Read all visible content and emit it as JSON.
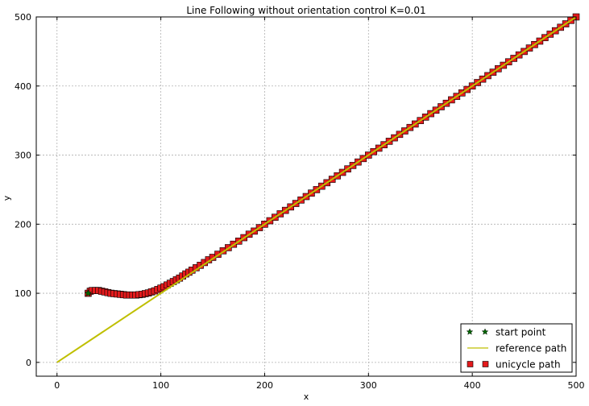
{
  "chart_data": {
    "type": "line",
    "title": "Line Following without orientation control K=0.01",
    "xlabel": "x",
    "ylabel": "y",
    "xlim": [
      -20,
      500
    ],
    "ylim": [
      -20,
      500
    ],
    "xticks": [
      0,
      100,
      200,
      300,
      400,
      500
    ],
    "yticks": [
      0,
      100,
      200,
      300,
      400,
      500
    ],
    "grid": true,
    "legend_position": "lower-right",
    "series": [
      {
        "name": "start point",
        "kind": "marker",
        "marker": "star",
        "color": "#006400",
        "points": [
          [
            30,
            100
          ]
        ]
      },
      {
        "name": "reference path",
        "kind": "line",
        "color": "#bfbf00",
        "points": [
          [
            0,
            0
          ],
          [
            500,
            500
          ]
        ]
      },
      {
        "name": "unicycle path",
        "kind": "marker",
        "marker": "square",
        "color": "#e31a1c",
        "points": [
          [
            30,
            100
          ],
          [
            32,
            103
          ],
          [
            34,
            104
          ],
          [
            37,
            104
          ],
          [
            40,
            104
          ],
          [
            43,
            103
          ],
          [
            46,
            102
          ],
          [
            49,
            101
          ],
          [
            52,
            100
          ],
          [
            55,
            99.5
          ],
          [
            58,
            99
          ],
          [
            61,
            98.5
          ],
          [
            64,
            98
          ],
          [
            67,
            97.5
          ],
          [
            70,
            97.5
          ],
          [
            73,
            97.5
          ],
          [
            76,
            97.5
          ],
          [
            79,
            98
          ],
          [
            82,
            98.5
          ],
          [
            85,
            99.5
          ],
          [
            88,
            100.5
          ],
          [
            91,
            102
          ],
          [
            94,
            103.5
          ],
          [
            97,
            105.5
          ],
          [
            100,
            107.5
          ],
          [
            103,
            109.5
          ],
          [
            106,
            112
          ],
          [
            109,
            114.5
          ],
          [
            112,
            117
          ],
          [
            115,
            119.5
          ],
          [
            118,
            122
          ],
          [
            121,
            125
          ],
          [
            124,
            128
          ],
          [
            127,
            130.5
          ],
          [
            130,
            133.5
          ],
          [
            134,
            137
          ],
          [
            138,
            140.5
          ],
          [
            142,
            144.5
          ],
          [
            146,
            148.5
          ],
          [
            150,
            152
          ],
          [
            155,
            156.5
          ],
          [
            160,
            161.5
          ],
          [
            165,
            166
          ],
          [
            170,
            171
          ],
          [
            175,
            175.5
          ],
          [
            180,
            180.5
          ],
          [
            185,
            185.5
          ],
          [
            190,
            190
          ],
          [
            195,
            195
          ],
          [
            200,
            200
          ],
          [
            205,
            205
          ],
          [
            210,
            210
          ],
          [
            215,
            215
          ],
          [
            220,
            220
          ],
          [
            225,
            225
          ],
          [
            230,
            230
          ],
          [
            235,
            235
          ],
          [
            240,
            240
          ],
          [
            245,
            245
          ],
          [
            250,
            250
          ],
          [
            255,
            255
          ],
          [
            260,
            260
          ],
          [
            265,
            265
          ],
          [
            270,
            270
          ],
          [
            275,
            275
          ],
          [
            280,
            280
          ],
          [
            285,
            285
          ],
          [
            290,
            290
          ],
          [
            295,
            295
          ],
          [
            300,
            300
          ],
          [
            305,
            305
          ],
          [
            310,
            310
          ],
          [
            315,
            315
          ],
          [
            320,
            320
          ],
          [
            325,
            325
          ],
          [
            330,
            330
          ],
          [
            335,
            335
          ],
          [
            340,
            340
          ],
          [
            345,
            345
          ],
          [
            350,
            350
          ],
          [
            355,
            355
          ],
          [
            360,
            360
          ],
          [
            365,
            365
          ],
          [
            370,
            370
          ],
          [
            375,
            375
          ],
          [
            380,
            380
          ],
          [
            385,
            385
          ],
          [
            390,
            390
          ],
          [
            395,
            395
          ],
          [
            400,
            400
          ],
          [
            405,
            405
          ],
          [
            410,
            410
          ],
          [
            415,
            415
          ],
          [
            420,
            420
          ],
          [
            425,
            425
          ],
          [
            430,
            430
          ],
          [
            435,
            435
          ],
          [
            440,
            440
          ],
          [
            445,
            445
          ],
          [
            450,
            450
          ],
          [
            455,
            455
          ],
          [
            460,
            460
          ],
          [
            465,
            465
          ],
          [
            470,
            470
          ],
          [
            475,
            475
          ],
          [
            480,
            480
          ],
          [
            485,
            485
          ],
          [
            490,
            490
          ],
          [
            495,
            495
          ],
          [
            500,
            500
          ]
        ]
      }
    ]
  }
}
